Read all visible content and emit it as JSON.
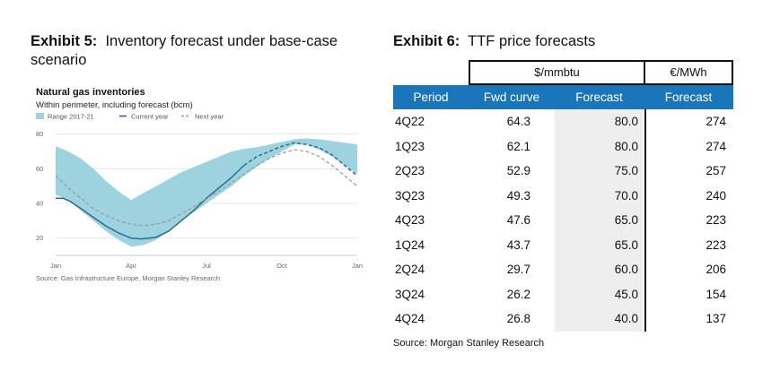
{
  "exhibit5": {
    "label": "Exhibit 5:",
    "title": "Inventory forecast under base-case scenario"
  },
  "exhibit6": {
    "label": "Exhibit 6:",
    "title": "TTF price forecasts"
  },
  "chart_data": {
    "type": "line",
    "title": "Natural gas inventories",
    "subtitle": "Within perimeter, including forecast (bcm)",
    "source": "Source: Gas Infrastructure Europe, Morgan Stanley Research",
    "legend": {
      "placement": "top",
      "entries": [
        "Range 2017-21",
        "Current year",
        "Next year"
      ]
    },
    "x_ticks": [
      "Jan",
      "Apr",
      "Jul",
      "Oct",
      "Jan"
    ],
    "y_ticks": [
      20,
      40,
      60,
      80
    ],
    "xlim": [
      0,
      12
    ],
    "ylim": [
      10,
      85
    ],
    "grid": "horizontal",
    "colors": {
      "range": "#9cd3df",
      "current": "#2b6b96",
      "next": "#9a9a9a"
    },
    "series": [
      {
        "name": "Range 2017-21",
        "kind": "band",
        "x": [
          0,
          0.5,
          1,
          1.5,
          2,
          2.5,
          3,
          3.5,
          4,
          4.5,
          5,
          5.5,
          6,
          6.5,
          7,
          7.5,
          8,
          8.5,
          9,
          9.5,
          10,
          10.5,
          11,
          11.5,
          12
        ],
        "low": [
          45,
          42,
          36,
          30,
          24,
          19,
          15,
          16,
          19,
          24,
          30,
          35,
          40,
          45,
          50,
          56,
          61,
          66,
          70,
          74,
          74,
          71,
          67,
          62,
          57
        ],
        "high": [
          73,
          70,
          66,
          60,
          53,
          47,
          42,
          46,
          50,
          54,
          58,
          61,
          64,
          67,
          70,
          71.5,
          72.5,
          74,
          75.5,
          77,
          77.5,
          77,
          76,
          75,
          74
        ]
      },
      {
        "name": "Current year",
        "kind": "line",
        "style": "solid",
        "x": [
          0,
          0.3,
          0.6,
          1,
          1.5,
          2,
          2.5,
          3,
          3.4,
          3.7,
          4,
          4.5,
          5,
          5.5,
          6,
          6.5,
          7,
          7.5
        ],
        "y": [
          43,
          43,
          41,
          37,
          32,
          27,
          23,
          20,
          19.5,
          20,
          20.5,
          24,
          30,
          36,
          43,
          49,
          55,
          62
        ]
      },
      {
        "name": "Current year forecast",
        "kind": "line",
        "style": "dashed",
        "x": [
          7.5,
          8,
          8.5,
          9,
          9.5,
          10,
          10.5,
          11,
          11.5,
          12
        ],
        "y": [
          62,
          67,
          70,
          73,
          75,
          74,
          72,
          68,
          62,
          56
        ]
      },
      {
        "name": "Next year",
        "kind": "line",
        "style": "dashed",
        "x": [
          0,
          0.5,
          1,
          1.5,
          2,
          2.5,
          3,
          3.5,
          4,
          4.5,
          5,
          5.5,
          6,
          6.5,
          7,
          7.5,
          8,
          8.5,
          9,
          9.5,
          10,
          10.5,
          11,
          11.5,
          12
        ],
        "y": [
          56,
          49,
          43,
          37,
          33,
          30,
          28,
          27,
          28,
          30,
          34,
          38,
          43,
          47,
          52,
          57,
          62,
          66,
          69,
          71,
          70,
          67,
          62,
          56,
          50
        ]
      }
    ]
  },
  "table": {
    "units": {
      "usd": "$/mmbtu",
      "eur": "€/MWh"
    },
    "headers": {
      "period": "Period",
      "fwd": "Fwd curve",
      "forecast": "Forecast",
      "eur_forecast": "Forecast"
    },
    "rows": [
      {
        "period": "4Q22",
        "fwd": "64.3",
        "forecast": "80.0",
        "eur": "274"
      },
      {
        "period": "1Q23",
        "fwd": "62.1",
        "forecast": "80.0",
        "eur": "274"
      },
      {
        "period": "2Q23",
        "fwd": "52.9",
        "forecast": "75.0",
        "eur": "257"
      },
      {
        "period": "3Q23",
        "fwd": "49.3",
        "forecast": "70.0",
        "eur": "240"
      },
      {
        "period": "4Q23",
        "fwd": "47.6",
        "forecast": "65.0",
        "eur": "223"
      },
      {
        "period": "1Q24",
        "fwd": "43.7",
        "forecast": "65.0",
        "eur": "223"
      },
      {
        "period": "2Q24",
        "fwd": "29.7",
        "forecast": "60.0",
        "eur": "206"
      },
      {
        "period": "3Q24",
        "fwd": "26.2",
        "forecast": "45.0",
        "eur": "154"
      },
      {
        "period": "4Q24",
        "fwd": "26.8",
        "forecast": "40.0",
        "eur": "137"
      }
    ],
    "source": "Source: Morgan Stanley Research"
  }
}
